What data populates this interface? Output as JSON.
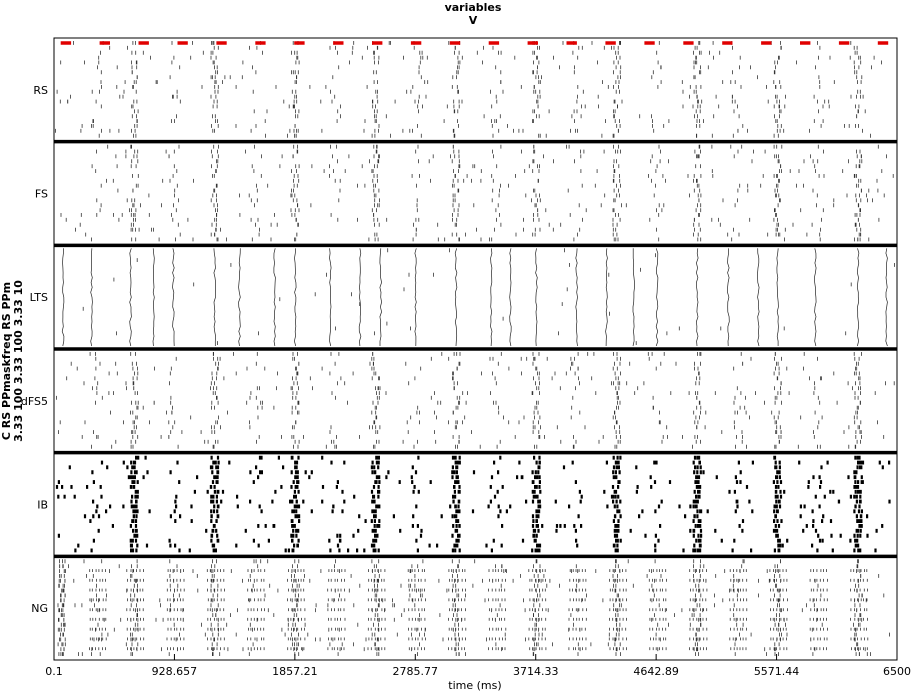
{
  "chart_data": {
    "type": "raster",
    "title": [
      "variables",
      "V"
    ],
    "ylabel": [
      "C RS PPmaskfreq RS PPm",
      "3.33  100 3.33 100 3.33 10"
    ],
    "xlabel": "time (ms)",
    "xlim": [
      0.1,
      6500
    ],
    "xticks": [
      "0.1",
      "928.657",
      "1857.21",
      "2785.77",
      "3714.33",
      "4642.89",
      "5571.44",
      "6500"
    ],
    "panels": [
      {
        "name": "RS",
        "pattern": "sparse_sync",
        "density": 0.8
      },
      {
        "name": "FS",
        "pattern": "sparse_sync",
        "density": 0.9
      },
      {
        "name": "LTS",
        "pattern": "lines",
        "density": 0.3
      },
      {
        "name": "dFS5",
        "pattern": "sparse_sync",
        "density": 0.9
      },
      {
        "name": "IB",
        "pattern": "bursts",
        "density": 1.0
      },
      {
        "name": "NG",
        "pattern": "dense_bursts",
        "density": 1.0
      }
    ],
    "pulse_marker": {
      "color": "#e00000",
      "count": 22,
      "start_ms": 52,
      "period_ms": 300,
      "width_ms": 80
    },
    "strong_burst_times_ms": [
      620,
      1240,
      1860,
      2480,
      3100,
      3720,
      4340,
      4960,
      5580,
      6200
    ],
    "weak_burst_times_ms": [
      330,
      930,
      1550,
      2170,
      2790,
      3410,
      4030,
      4650,
      5270,
      5890
    ],
    "lts_line_times_ms": [
      70,
      290,
      590,
      770,
      920,
      1240,
      1430,
      1700,
      1860,
      2130,
      2360,
      2520,
      2790,
      3100,
      3370,
      3520,
      3720,
      4030,
      4260,
      4470,
      4650,
      4960,
      5200,
      5430,
      5580,
      5870,
      6200,
      6420
    ]
  }
}
